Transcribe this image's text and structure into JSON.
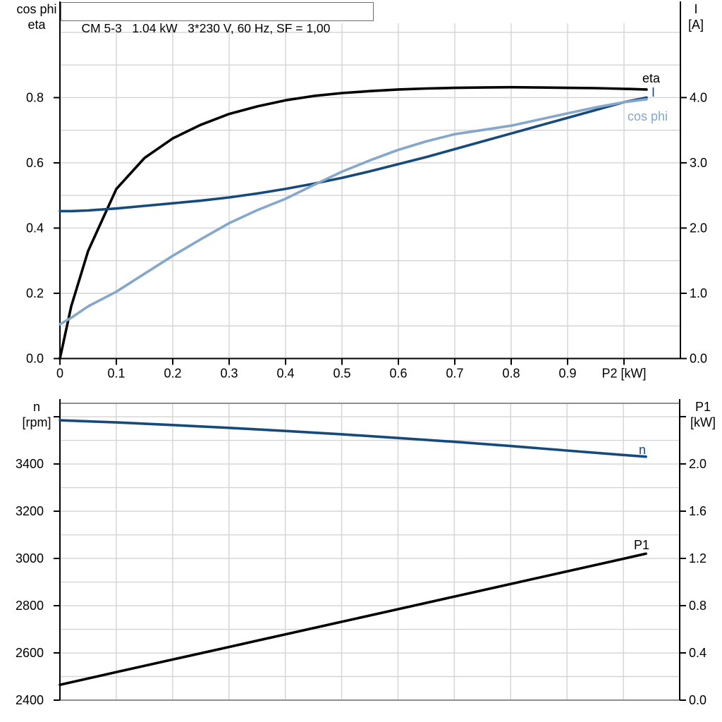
{
  "page": {
    "background": "#ffffff"
  },
  "colors": {
    "grid": "#d4d4d8",
    "axis": "#000000",
    "frame_gray": "#8f8f8f",
    "dark_blue": "#174a7c",
    "light_blue": "#84a7ca",
    "black": "#000000"
  },
  "chart_data": [
    {
      "type": "line",
      "title": "CM 5-3   1.04 kW   3*230 V, 60 Hz, SF = 1,00",
      "x_axis": {
        "label": "P2 [kW]",
        "label_at": 1.0,
        "min": 0,
        "max": 1.1,
        "grid_step": 0.1,
        "grid_max": 1.0,
        "ticks": [
          {
            "v": 0,
            "label": "0"
          },
          {
            "v": 0.1,
            "label": "0.1"
          },
          {
            "v": 0.2,
            "label": "0.2"
          },
          {
            "v": 0.3,
            "label": "0.3"
          },
          {
            "v": 0.4,
            "label": "0.4"
          },
          {
            "v": 0.5,
            "label": "0.5"
          },
          {
            "v": 0.6,
            "label": "0.6"
          },
          {
            "v": 0.7,
            "label": "0.7"
          },
          {
            "v": 0.8,
            "label": "0.8"
          },
          {
            "v": 0.9,
            "label": "0.9"
          },
          {
            "v": 1.0,
            "label": ""
          }
        ]
      },
      "y_left": {
        "header1": "cos phi",
        "header2": "eta",
        "min": 0,
        "max": 1.028,
        "grid_step": 0.1,
        "grid_max": 1.0,
        "ticks": [
          {
            "v": 0,
            "label": "0.0"
          },
          {
            "v": 0.2,
            "label": "0.2"
          },
          {
            "v": 0.4,
            "label": "0.4"
          },
          {
            "v": 0.6,
            "label": "0.6"
          },
          {
            "v": 0.8,
            "label": "0.8"
          }
        ]
      },
      "y_right": {
        "header1": "I",
        "header2": "[A]",
        "min": 0,
        "max": 5.139,
        "ticks": [
          {
            "v": 0,
            "label": "0.0"
          },
          {
            "v": 1,
            "label": "1.0"
          },
          {
            "v": 2,
            "label": "2.0"
          },
          {
            "v": 3,
            "label": "3.0"
          },
          {
            "v": 4,
            "label": "4.0"
          }
        ]
      },
      "x": [
        0,
        0.02,
        0.05,
        0.1,
        0.15,
        0.2,
        0.25,
        0.3,
        0.35,
        0.4,
        0.45,
        0.5,
        0.55,
        0.6,
        0.65,
        0.7,
        0.75,
        0.8,
        0.85,
        0.9,
        0.95,
        1.0,
        1.04
      ],
      "series": [
        {
          "name": "eta",
          "axis": "left",
          "color": "#000000",
          "y": [
            0,
            0.16,
            0.33,
            0.52,
            0.615,
            0.675,
            0.717,
            0.75,
            0.773,
            0.792,
            0.805,
            0.814,
            0.82,
            0.825,
            0.828,
            0.83,
            0.831,
            0.832,
            0.831,
            0.83,
            0.829,
            0.827,
            0.825
          ]
        },
        {
          "name": "I",
          "axis": "right",
          "color": "#174a7c",
          "y": [
            2.26,
            2.26,
            2.27,
            2.3,
            2.34,
            2.38,
            2.42,
            2.47,
            2.53,
            2.6,
            2.68,
            2.77,
            2.87,
            2.98,
            3.09,
            3.21,
            3.33,
            3.45,
            3.57,
            3.69,
            3.81,
            3.93,
            4.0
          ]
        },
        {
          "name": "cos phi",
          "axis": "left",
          "color": "#84a7ca",
          "y": [
            0.105,
            0.125,
            0.16,
            0.205,
            0.26,
            0.315,
            0.366,
            0.415,
            0.455,
            0.49,
            0.532,
            0.573,
            0.608,
            0.64,
            0.666,
            0.688,
            0.701,
            0.714,
            0.733,
            0.752,
            0.77,
            0.786,
            0.795
          ]
        }
      ]
    },
    {
      "type": "line",
      "title": "",
      "x_axis": {
        "label": "",
        "label_at": null,
        "min": 0,
        "max": 1.1,
        "grid_step": 0.1,
        "grid_max": 1.0,
        "ticks": []
      },
      "y_left": {
        "header1": "n",
        "header2": "[rpm]",
        "min": 2400,
        "max": 3657,
        "grid_step": 100,
        "grid_max": 3600,
        "ticks": [
          {
            "v": 2400,
            "label": "2400"
          },
          {
            "v": 2600,
            "label": "2600"
          },
          {
            "v": 2800,
            "label": "2800"
          },
          {
            "v": 3000,
            "label": "3000"
          },
          {
            "v": 3200,
            "label": "3200"
          },
          {
            "v": 3400,
            "label": "3400"
          },
          {
            "v": 3600,
            "label": ""
          }
        ]
      },
      "y_right": {
        "header1": "P1",
        "header2": "[kW]",
        "min": 0,
        "max": 2.513,
        "ticks": [
          {
            "v": 0,
            "label": "0.0"
          },
          {
            "v": 0.4,
            "label": "0.4"
          },
          {
            "v": 0.8,
            "label": "0.8"
          },
          {
            "v": 1.2,
            "label": "1.2"
          },
          {
            "v": 1.6,
            "label": "1.6"
          },
          {
            "v": 2.0,
            "label": "2.0"
          },
          {
            "v": 2.4,
            "label": ""
          }
        ]
      },
      "x": [
        0,
        0.1,
        0.2,
        0.3,
        0.4,
        0.5,
        0.6,
        0.7,
        0.8,
        0.9,
        1.0,
        1.04
      ],
      "series": [
        {
          "name": "n",
          "axis": "left",
          "color": "#174a7c",
          "y": [
            3585,
            3576,
            3565,
            3553,
            3540,
            3526,
            3510,
            3494,
            3476,
            3457,
            3438,
            3431
          ]
        },
        {
          "name": "P1",
          "axis": "right",
          "color": "#000000",
          "y": [
            0.13,
            0.237,
            0.344,
            0.45,
            0.557,
            0.663,
            0.77,
            0.877,
            0.984,
            1.09,
            1.197,
            1.24
          ]
        }
      ]
    }
  ]
}
